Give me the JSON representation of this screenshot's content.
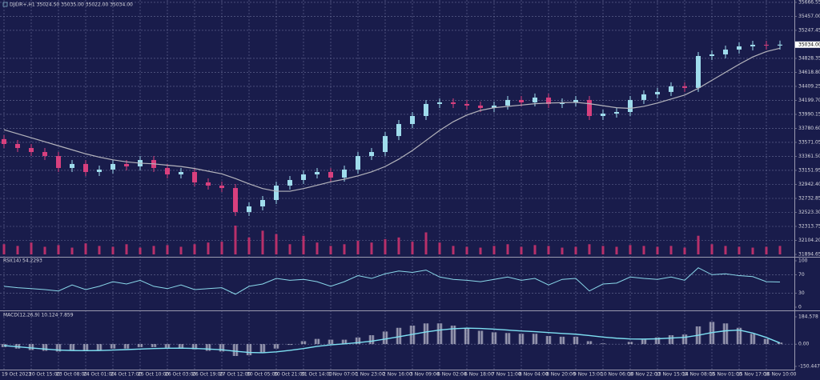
{
  "chart_data": [
    {
      "type": "candlestick",
      "title": "DJI[IR+,H1 35024.50 35035.00 35022.00 35034.00",
      "x": [
        "19 Oct 2023",
        null,
        "20 Oct 15:00",
        null,
        "23 Oct 08:00",
        null,
        "24 Oct 01:00",
        null,
        "24 Oct 17:00",
        null,
        "25 Oct 10:00",
        null,
        "26 Oct 03:00",
        null,
        "26 Oct 19:00",
        null,
        "27 Oct 12:00",
        null,
        "30 Oct 05:00",
        null,
        "30 Oct 21:00",
        null,
        "31 Oct 14:00",
        null,
        "1 Nov 07:00",
        null,
        "1 Nov 23:00",
        null,
        "2 Nov 16:00",
        null,
        "3 Nov 09:00",
        null,
        "6 Nov 02:00",
        null,
        "6 Nov 18:00",
        null,
        "7 Nov 11:00",
        null,
        "8 Nov 04:00",
        null,
        "8 Nov 20:00",
        null,
        "9 Nov 13:00",
        null,
        "10 Nov 06:00",
        null,
        "10 Nov 22:00",
        null,
        "13 Nov 15:00",
        null,
        "14 Nov 08:00",
        null,
        "15 Nov 01:00",
        null,
        "15 Nov 17:00",
        null,
        "16 Nov 10:00",
        null
      ],
      "open": [
        33620,
        33547,
        33487,
        33427,
        33367,
        33188,
        33248,
        33128,
        33164,
        33248,
        33212,
        33307,
        33188,
        33092,
        33128,
        32972,
        32924,
        32888,
        32529,
        32613,
        32709,
        32924,
        33008,
        33092,
        33128,
        33044,
        33164,
        33367,
        33427,
        33666,
        33846,
        33966,
        34146,
        34170,
        34146,
        34122,
        34086,
        34122,
        34206,
        34170,
        34242,
        34146,
        34170,
        34206,
        33966,
        34002,
        34026,
        34206,
        34290,
        34326,
        34410,
        34386,
        34864,
        34888,
        34960,
        35008,
        35032,
        35020
      ],
      "high": [
        33680,
        33607,
        33547,
        33487,
        33427,
        33308,
        33308,
        33224,
        33308,
        33308,
        33367,
        33367,
        33248,
        33188,
        33188,
        33032,
        32984,
        32948,
        32673,
        32769,
        32984,
        33068,
        33152,
        33188,
        33188,
        33224,
        33427,
        33487,
        33726,
        33906,
        34026,
        34206,
        34230,
        34230,
        34206,
        34182,
        34182,
        34266,
        34266,
        34302,
        34302,
        34230,
        34266,
        34266,
        34062,
        34086,
        34266,
        34350,
        34386,
        34470,
        34470,
        34924,
        34948,
        35020,
        35068,
        35092,
        35092,
        35094
      ],
      "low": [
        33487,
        33427,
        33367,
        33307,
        33128,
        33128,
        33068,
        33068,
        33104,
        33152,
        33152,
        33128,
        33032,
        33032,
        32912,
        32864,
        32828,
        32469,
        32469,
        32553,
        32649,
        32864,
        32948,
        33032,
        32984,
        32984,
        33104,
        33307,
        33367,
        33606,
        33786,
        33906,
        34086,
        34086,
        34062,
        34026,
        34026,
        34062,
        34110,
        34110,
        34086,
        34086,
        34110,
        33906,
        33906,
        33942,
        33966,
        34146,
        34230,
        34266,
        34326,
        34326,
        34804,
        34828,
        34900,
        34948,
        34960,
        34960
      ],
      "close": [
        33547,
        33487,
        33427,
        33367,
        33188,
        33248,
        33128,
        33164,
        33248,
        33212,
        33307,
        33188,
        33092,
        33128,
        32972,
        32924,
        32888,
        32529,
        32613,
        32709,
        32924,
        33008,
        33092,
        33128,
        33044,
        33164,
        33367,
        33427,
        33666,
        33846,
        33966,
        34146,
        34170,
        34146,
        34122,
        34086,
        34122,
        34206,
        34170,
        34242,
        34146,
        34170,
        34206,
        33966,
        34002,
        34026,
        34206,
        34290,
        34326,
        34410,
        34386,
        34864,
        34888,
        34960,
        35008,
        35032,
        35020,
        35034
      ],
      "last_close_label": "35034.00",
      "ma": [
        33760,
        33700,
        33640,
        33580,
        33520,
        33460,
        33400,
        33350,
        33310,
        33280,
        33260,
        33250,
        33230,
        33210,
        33180,
        33140,
        33100,
        33030,
        32950,
        32880,
        32840,
        32840,
        32880,
        32930,
        32980,
        33020,
        33070,
        33130,
        33210,
        33320,
        33450,
        33600,
        33750,
        33880,
        33980,
        34050,
        34090,
        34110,
        34130,
        34150,
        34160,
        34165,
        34170,
        34150,
        34120,
        34090,
        34080,
        34110,
        34160,
        34220,
        34280,
        34380,
        34500,
        34620,
        34740,
        34850,
        34930,
        34980
      ],
      "volume": [
        12,
        10,
        14,
        9,
        11,
        8,
        13,
        10,
        9,
        12,
        8,
        10,
        11,
        9,
        12,
        14,
        15,
        34,
        20,
        28,
        24,
        12,
        22,
        14,
        10,
        12,
        16,
        14,
        18,
        20,
        15,
        26,
        14,
        10,
        9,
        8,
        10,
        12,
        9,
        11,
        10,
        8,
        9,
        12,
        10,
        9,
        11,
        10,
        9,
        10,
        8,
        22,
        12,
        10,
        9,
        8,
        9,
        10
      ],
      "up_color": "#9fdcec",
      "down_color": "#d8407e",
      "ma_color": "#b4b4bc",
      "volume_color": "#b8306a",
      "ylim": [
        31894.65,
        35702
      ],
      "yticks": [
        {
          "value": 31894.65,
          "label": "31894.65"
        },
        {
          "value": 32104.2,
          "label": "32104.20"
        },
        {
          "value": 32313.75,
          "label": "32313.75"
        },
        {
          "value": 32523.3,
          "label": "32523.30"
        },
        {
          "value": 32732.85,
          "label": "32732.85"
        },
        {
          "value": 32942.4,
          "label": "32942.40"
        },
        {
          "value": 33151.95,
          "label": "33151.95"
        },
        {
          "value": 33361.5,
          "label": "33361.50"
        },
        {
          "value": 33571.05,
          "label": "33571.05"
        },
        {
          "value": 33780.6,
          "label": "33780.60"
        },
        {
          "value": 33990.15,
          "label": "33990.15"
        },
        {
          "value": 34199.7,
          "label": "34199.70"
        },
        {
          "value": 34409.25,
          "label": "34409.25"
        },
        {
          "value": 34618.8,
          "label": "34618.80"
        },
        {
          "value": 34828.35,
          "label": "34828.35"
        },
        {
          "value": 35247.45,
          "label": "35247.45"
        },
        {
          "value": 35457,
          "label": "35457.00"
        },
        {
          "value": 35666.55,
          "label": "35666.55"
        }
      ],
      "grid": true
    },
    {
      "type": "line",
      "title": "RSI(14) 54.2293",
      "color": "#8ad8ea",
      "values": [
        45,
        42,
        40,
        38,
        35,
        48,
        38,
        45,
        55,
        50,
        58,
        45,
        40,
        48,
        38,
        40,
        42,
        28,
        45,
        50,
        62,
        58,
        60,
        55,
        45,
        55,
        68,
        62,
        72,
        78,
        75,
        80,
        65,
        60,
        58,
        55,
        60,
        65,
        58,
        62,
        48,
        60,
        62,
        35,
        50,
        52,
        65,
        62,
        60,
        65,
        58,
        85,
        70,
        72,
        68,
        66,
        55,
        54.2293
      ],
      "ylim": [
        0,
        100
      ],
      "yticks": [
        0,
        30,
        70,
        100
      ],
      "grid": true
    },
    {
      "type": "macd",
      "title": "MACD(12,26,9) 10.124 7.859",
      "color": "#d8d8e4",
      "signal_color": "#7ee0f2",
      "values": [
        -20,
        -30,
        -40,
        -45,
        -50,
        -45,
        -45,
        -40,
        -30,
        -30,
        -20,
        -20,
        -25,
        -25,
        -35,
        -45,
        -50,
        -80,
        -75,
        -60,
        -30,
        -5,
        20,
        35,
        30,
        30,
        45,
        60,
        85,
        110,
        125,
        140,
        140,
        125,
        110,
        90,
        80,
        75,
        70,
        70,
        55,
        50,
        50,
        20,
        5,
        0,
        15,
        30,
        45,
        60,
        65,
        120,
        150,
        140,
        110,
        70,
        35,
        10.124
      ],
      "signal": [
        -10,
        -18,
        -26,
        -33,
        -40,
        -43,
        -44,
        -43,
        -40,
        -37,
        -33,
        -30,
        -28,
        -27,
        -29,
        -33,
        -38,
        -48,
        -56,
        -58,
        -52,
        -42,
        -30,
        -15,
        -5,
        2,
        10,
        20,
        34,
        50,
        66,
        82,
        95,
        104,
        108,
        106,
        101,
        95,
        89,
        84,
        78,
        72,
        67,
        58,
        48,
        40,
        35,
        34,
        36,
        41,
        46,
        60,
        78,
        90,
        95,
        75,
        45,
        7.859
      ],
      "ylim": [
        -150.447,
        184.578
      ],
      "yticks": [
        -150.447,
        {
          "value": 0,
          "label": "0.00"
        },
        184.578
      ],
      "grid": true
    }
  ]
}
